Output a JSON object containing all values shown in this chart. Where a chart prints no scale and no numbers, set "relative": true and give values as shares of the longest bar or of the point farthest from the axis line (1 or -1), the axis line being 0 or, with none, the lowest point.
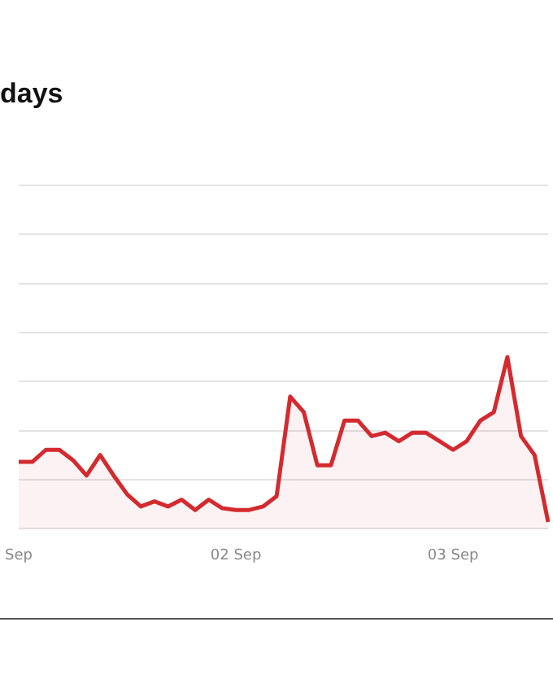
{
  "chart_data": {
    "type": "area",
    "title": "days",
    "relative": true,
    "grid": "y",
    "legend": false,
    "marker": "none",
    "line_style": "solid",
    "categories": [
      "Sep",
      null,
      null,
      null,
      null,
      null,
      null,
      null,
      null,
      null,
      null,
      null,
      null,
      null,
      null,
      null,
      "02 Sep",
      null,
      null,
      null,
      null,
      null,
      null,
      null,
      null,
      null,
      null,
      null,
      null,
      null,
      null,
      null,
      "03 Sep",
      null,
      null,
      null,
      null,
      null,
      null,
      null
    ],
    "series": [
      {
        "color": "#d42a2f",
        "values": [
          0.39,
          0.39,
          0.46,
          0.46,
          0.4,
          0.31,
          0.43,
          0.31,
          0.2,
          0.13,
          0.16,
          0.13,
          0.17,
          0.11,
          0.17,
          0.12,
          0.11,
          0.11,
          0.13,
          0.19,
          0.77,
          0.68,
          0.37,
          0.37,
          0.63,
          0.63,
          0.54,
          0.56,
          0.51,
          0.56,
          0.56,
          0.51,
          0.46,
          0.51,
          0.63,
          0.68,
          1,
          0.54,
          0.43,
          0.04
        ]
      }
    ]
  }
}
